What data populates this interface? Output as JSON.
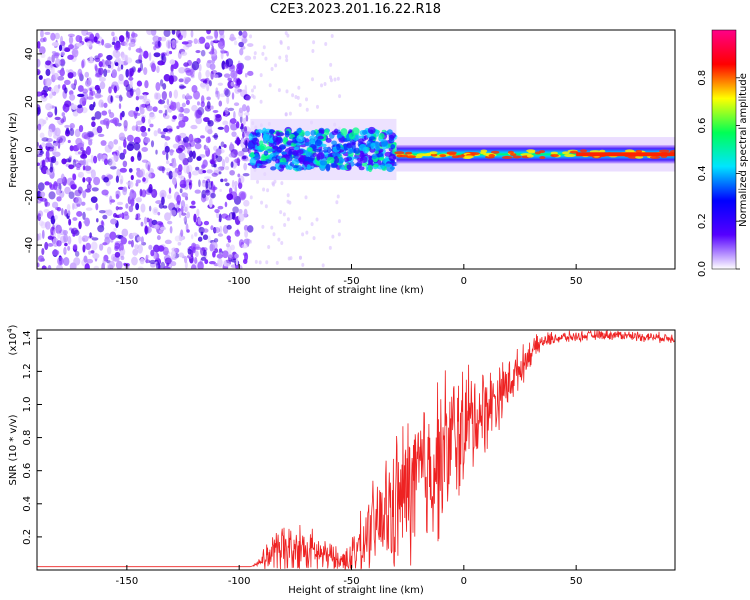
{
  "figure": {
    "title": "C2E3.2023.201.16.22.R18"
  },
  "chart_data": [
    {
      "type": "heatmap",
      "title": "C2E3.2023.201.16.22.R18",
      "xlabel": "Height of straight line (km)",
      "ylabel": "Frequency (Hz)",
      "xlim": [
        -190,
        94
      ],
      "ylim": [
        -50,
        50
      ],
      "x_ticks": [
        -150,
        -100,
        -50,
        0,
        50
      ],
      "y_ticks": [
        -40,
        -20,
        0,
        20,
        40
      ],
      "colorbar": {
        "label": "Normalized spectral amplitude",
        "range": [
          0.0,
          1.0
        ],
        "ticks": [
          "0.0",
          "0.2",
          "0.4",
          "0.6",
          "0.8"
        ],
        "colors": [
          "#ffffff",
          "#5500ff",
          "#0000ff",
          "#00e5ff",
          "#00ff55",
          "#ffff00",
          "#ff0000",
          "#ff0088"
        ]
      },
      "regions": [
        {
          "name": "noise",
          "x_range": [
            -190,
            -95
          ],
          "freq_range": [
            -50,
            50
          ],
          "amplitude": 0.1
        },
        {
          "name": "signal-onset",
          "x_range": [
            -95,
            -30
          ],
          "freq_center": 0,
          "freq_halfwidth": 8,
          "amplitude": 0.4
        },
        {
          "name": "signal-strong",
          "x_range": [
            -30,
            94
          ],
          "freq_center": -2,
          "freq_halfwidth": 3,
          "amplitude": 0.95
        }
      ],
      "grid": false
    },
    {
      "type": "line",
      "xlabel": "Height of straight line (km)",
      "ylabel": "SNR (10 * v/v)",
      "y_multiplier": "(x10",
      "y_multiplier_exp": "4",
      "xlim": [
        -190,
        94
      ],
      "ylim": [
        0,
        1.45
      ],
      "x_ticks": [
        -150,
        -100,
        -50,
        0,
        50
      ],
      "y_ticks": [
        "0.2",
        "0.4",
        "0.6",
        "0.8",
        "1.0",
        "1.2",
        "1.4"
      ],
      "color": "#ee2222",
      "series": [
        {
          "x": [
            -190,
            -150,
            -110,
            -95,
            -92,
            -90,
            -85,
            -80,
            -75,
            -70,
            -65,
            -60,
            -55,
            -50,
            -45,
            -40,
            -35,
            -30,
            -25,
            -20,
            -15,
            -10,
            -5,
            0,
            5,
            10,
            15,
            20,
            25,
            30,
            35,
            40,
            50,
            60,
            70,
            80,
            94
          ],
          "y": [
            0.02,
            0.02,
            0.02,
            0.02,
            0.04,
            0.06,
            0.1,
            0.12,
            0.13,
            0.12,
            0.1,
            0.08,
            0.05,
            0.1,
            0.16,
            0.25,
            0.32,
            0.4,
            0.48,
            0.55,
            0.62,
            0.7,
            0.78,
            0.86,
            0.92,
            0.98,
            1.05,
            1.13,
            1.22,
            1.32,
            1.38,
            1.4,
            1.41,
            1.42,
            1.42,
            1.41,
            1.4
          ],
          "spread": [
            0,
            0,
            0,
            0,
            0.02,
            0.04,
            0.12,
            0.16,
            0.16,
            0.15,
            0.12,
            0.1,
            0.06,
            0.12,
            0.2,
            0.28,
            0.36,
            0.42,
            0.46,
            0.5,
            0.5,
            0.48,
            0.45,
            0.4,
            0.32,
            0.26,
            0.2,
            0.16,
            0.12,
            0.08,
            0.05,
            0.04,
            0.03,
            0.03,
            0.03,
            0.03,
            0.03
          ]
        }
      ],
      "grid": false
    }
  ]
}
